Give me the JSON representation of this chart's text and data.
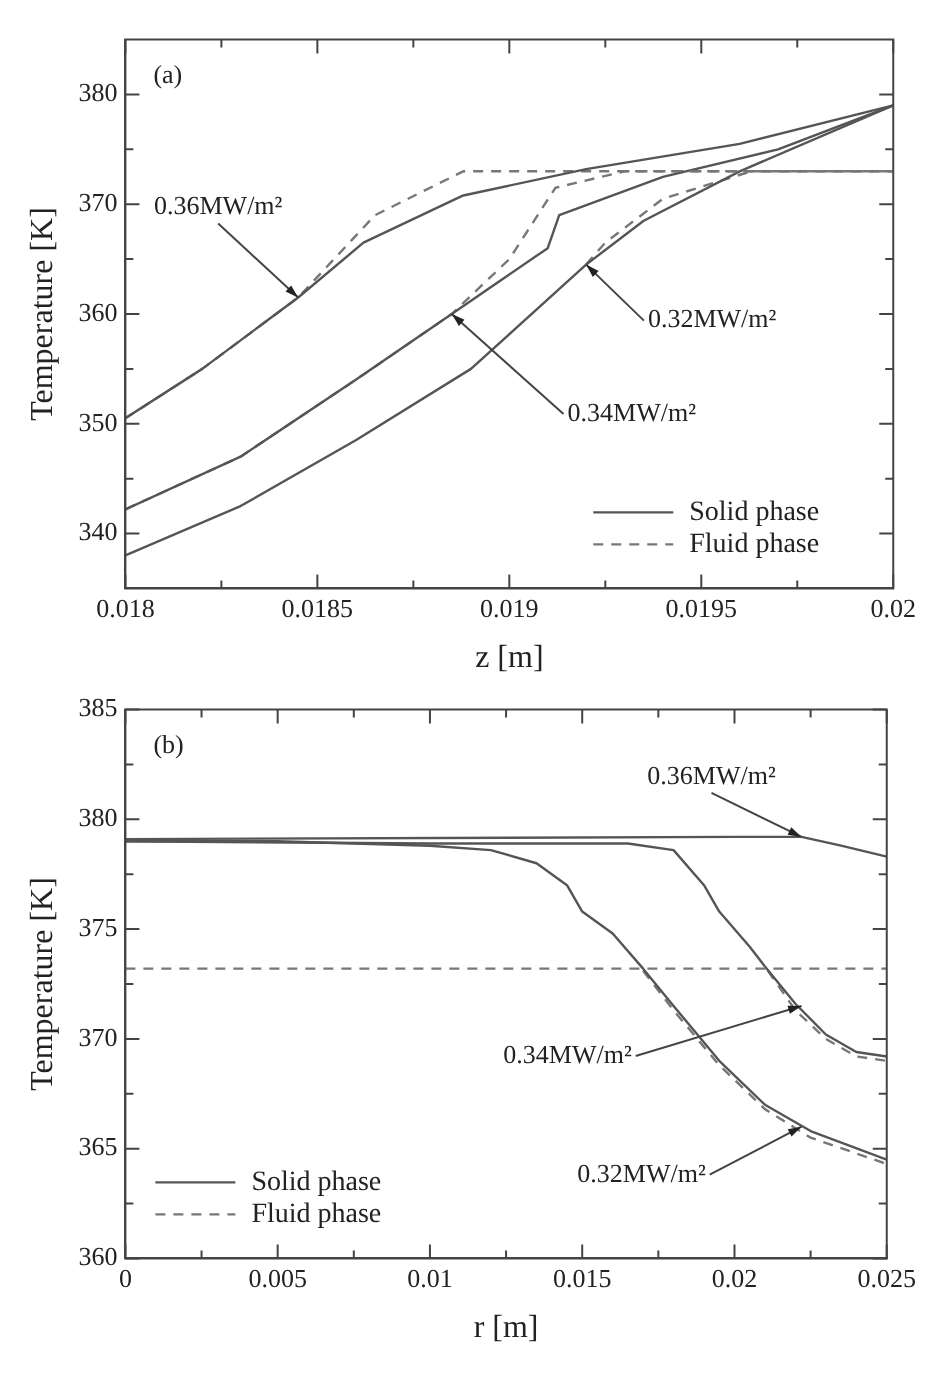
{
  "chart_data": [
    {
      "type": "line",
      "xlabel": "z [m]",
      "ylabel": "Temperature [K]",
      "xlim": [
        0.018,
        0.02
      ],
      "xticks": [
        0.018,
        0.0185,
        0.019,
        0.0195,
        0.02
      ],
      "ylim": [
        335,
        385
      ],
      "yticks": [
        340,
        350,
        360,
        370,
        380
      ],
      "grid": false,
      "legend": "bottom right",
      "marker": "none",
      "annotations": [
        "(a)",
        {
          "text": "0.36MW/m²",
          "x": 0.01845,
          "y": 361.5
        },
        {
          "text": "0.34MW/m²",
          "x": 0.01885,
          "y": 360
        },
        {
          "text": "0.32MW/m²",
          "x": 0.0192,
          "y": 364.5
        }
      ],
      "series": [
        {
          "name": "Solid phase",
          "color": "#555555",
          "line_style": "solid",
          "x": [
            0.018,
            0.0182,
            0.01845,
            0.01862,
            0.01888,
            0.0192,
            0.0196,
            0.02
          ],
          "values": [
            350.5,
            355,
            361.5,
            366.5,
            370.8,
            373.2,
            375.5,
            379
          ]
        },
        {
          "name": "Fluid phase",
          "color": "#777777",
          "line_style": "dashed",
          "x": [
            0.018,
            0.0182,
            0.01845,
            0.01865,
            0.01888,
            0.02
          ],
          "values": [
            350.5,
            355,
            361.5,
            369,
            373,
            373
          ]
        },
        {
          "color": "#555555",
          "line_style": "solid",
          "x": [
            0.018,
            0.0183,
            0.0186,
            0.01885,
            0.0191,
            0.01913,
            0.0194,
            0.0197,
            0.02
          ],
          "values": [
            342.2,
            347,
            354,
            360,
            366,
            369,
            372.5,
            375,
            379
          ]
        },
        {
          "color": "#777777",
          "line_style": "dashed",
          "x": [
            0.018,
            0.0183,
            0.0186,
            0.01885,
            0.019,
            0.01912,
            0.0193,
            0.02
          ],
          "values": [
            342.2,
            347,
            354,
            360,
            365,
            371.5,
            373,
            373
          ]
        },
        {
          "color": "#555555",
          "line_style": "solid",
          "x": [
            0.018,
            0.0183,
            0.0186,
            0.0189,
            0.0192,
            0.01935,
            0.0196,
            0.02
          ],
          "values": [
            338,
            342.5,
            348.5,
            355,
            364.5,
            368.5,
            373,
            379
          ]
        },
        {
          "color": "#777777",
          "line_style": "dashed",
          "x": [
            0.0192,
            0.01925,
            0.0194,
            0.01963,
            0.02
          ],
          "values": [
            364.5,
            366.5,
            370.5,
            373,
            373
          ]
        }
      ]
    },
    {
      "type": "line",
      "xlabel": "r [m]",
      "ylabel": "Temperature [K]",
      "xlim": [
        0,
        0.025
      ],
      "xticks": [
        0,
        0.005,
        0.01,
        0.015,
        0.02,
        0.025
      ],
      "ylim": [
        360,
        385
      ],
      "yticks": [
        360,
        365,
        370,
        375,
        380,
        385
      ],
      "grid": false,
      "legend": "bottom left",
      "marker": "none",
      "annotations": [
        "(b)",
        {
          "text": "0.36MW/m²",
          "x": 0.0222,
          "y": 379.2
        },
        {
          "text": "0.34MW/m²",
          "x": 0.0222,
          "y": 371.5
        },
        {
          "text": "0.32MW/m²",
          "x": 0.0222,
          "y": 366
        }
      ],
      "series": [
        {
          "name": "Solid phase",
          "color": "#555555",
          "line_style": "solid",
          "x": [
            0,
            0.02,
            0.0222,
            0.0235,
            0.025
          ],
          "values": [
            379.1,
            379.2,
            379.2,
            378.8,
            378.3
          ]
        },
        {
          "name": "Fluid phase",
          "color": "#777777",
          "line_style": "dashed",
          "x": [
            0,
            0.025
          ],
          "values": [
            373.2,
            373.2
          ]
        },
        {
          "color": "#555555",
          "line_style": "solid",
          "x": [
            0,
            0.01,
            0.0165,
            0.018,
            0.019,
            0.0195,
            0.0205,
            0.021,
            0.022,
            0.023,
            0.024,
            0.025
          ],
          "values": [
            379,
            378.9,
            378.9,
            378.6,
            377,
            375.8,
            374.2,
            373.3,
            371.6,
            370.2,
            369.4,
            369.2
          ]
        },
        {
          "color": "#777777",
          "line_style": "dashed",
          "x": [
            0.0211,
            0.022,
            0.023,
            0.024,
            0.025
          ],
          "values": [
            373.1,
            371.3,
            370,
            369.2,
            369
          ]
        },
        {
          "color": "#555555",
          "line_style": "solid",
          "x": [
            0,
            0.005,
            0.01,
            0.012,
            0.0135,
            0.0145,
            0.015,
            0.016,
            0.017,
            0.018,
            0.0195,
            0.021,
            0.0225,
            0.025
          ],
          "values": [
            379,
            379,
            378.8,
            378.6,
            378,
            377,
            375.8,
            374.8,
            373.2,
            371.5,
            369,
            367,
            365.8,
            364.5
          ]
        },
        {
          "color": "#777777",
          "line_style": "dashed",
          "x": [
            0.017,
            0.018,
            0.0195,
            0.021,
            0.0225,
            0.025
          ],
          "values": [
            373.1,
            371.3,
            368.8,
            366.8,
            365.5,
            364.3
          ]
        }
      ]
    }
  ]
}
